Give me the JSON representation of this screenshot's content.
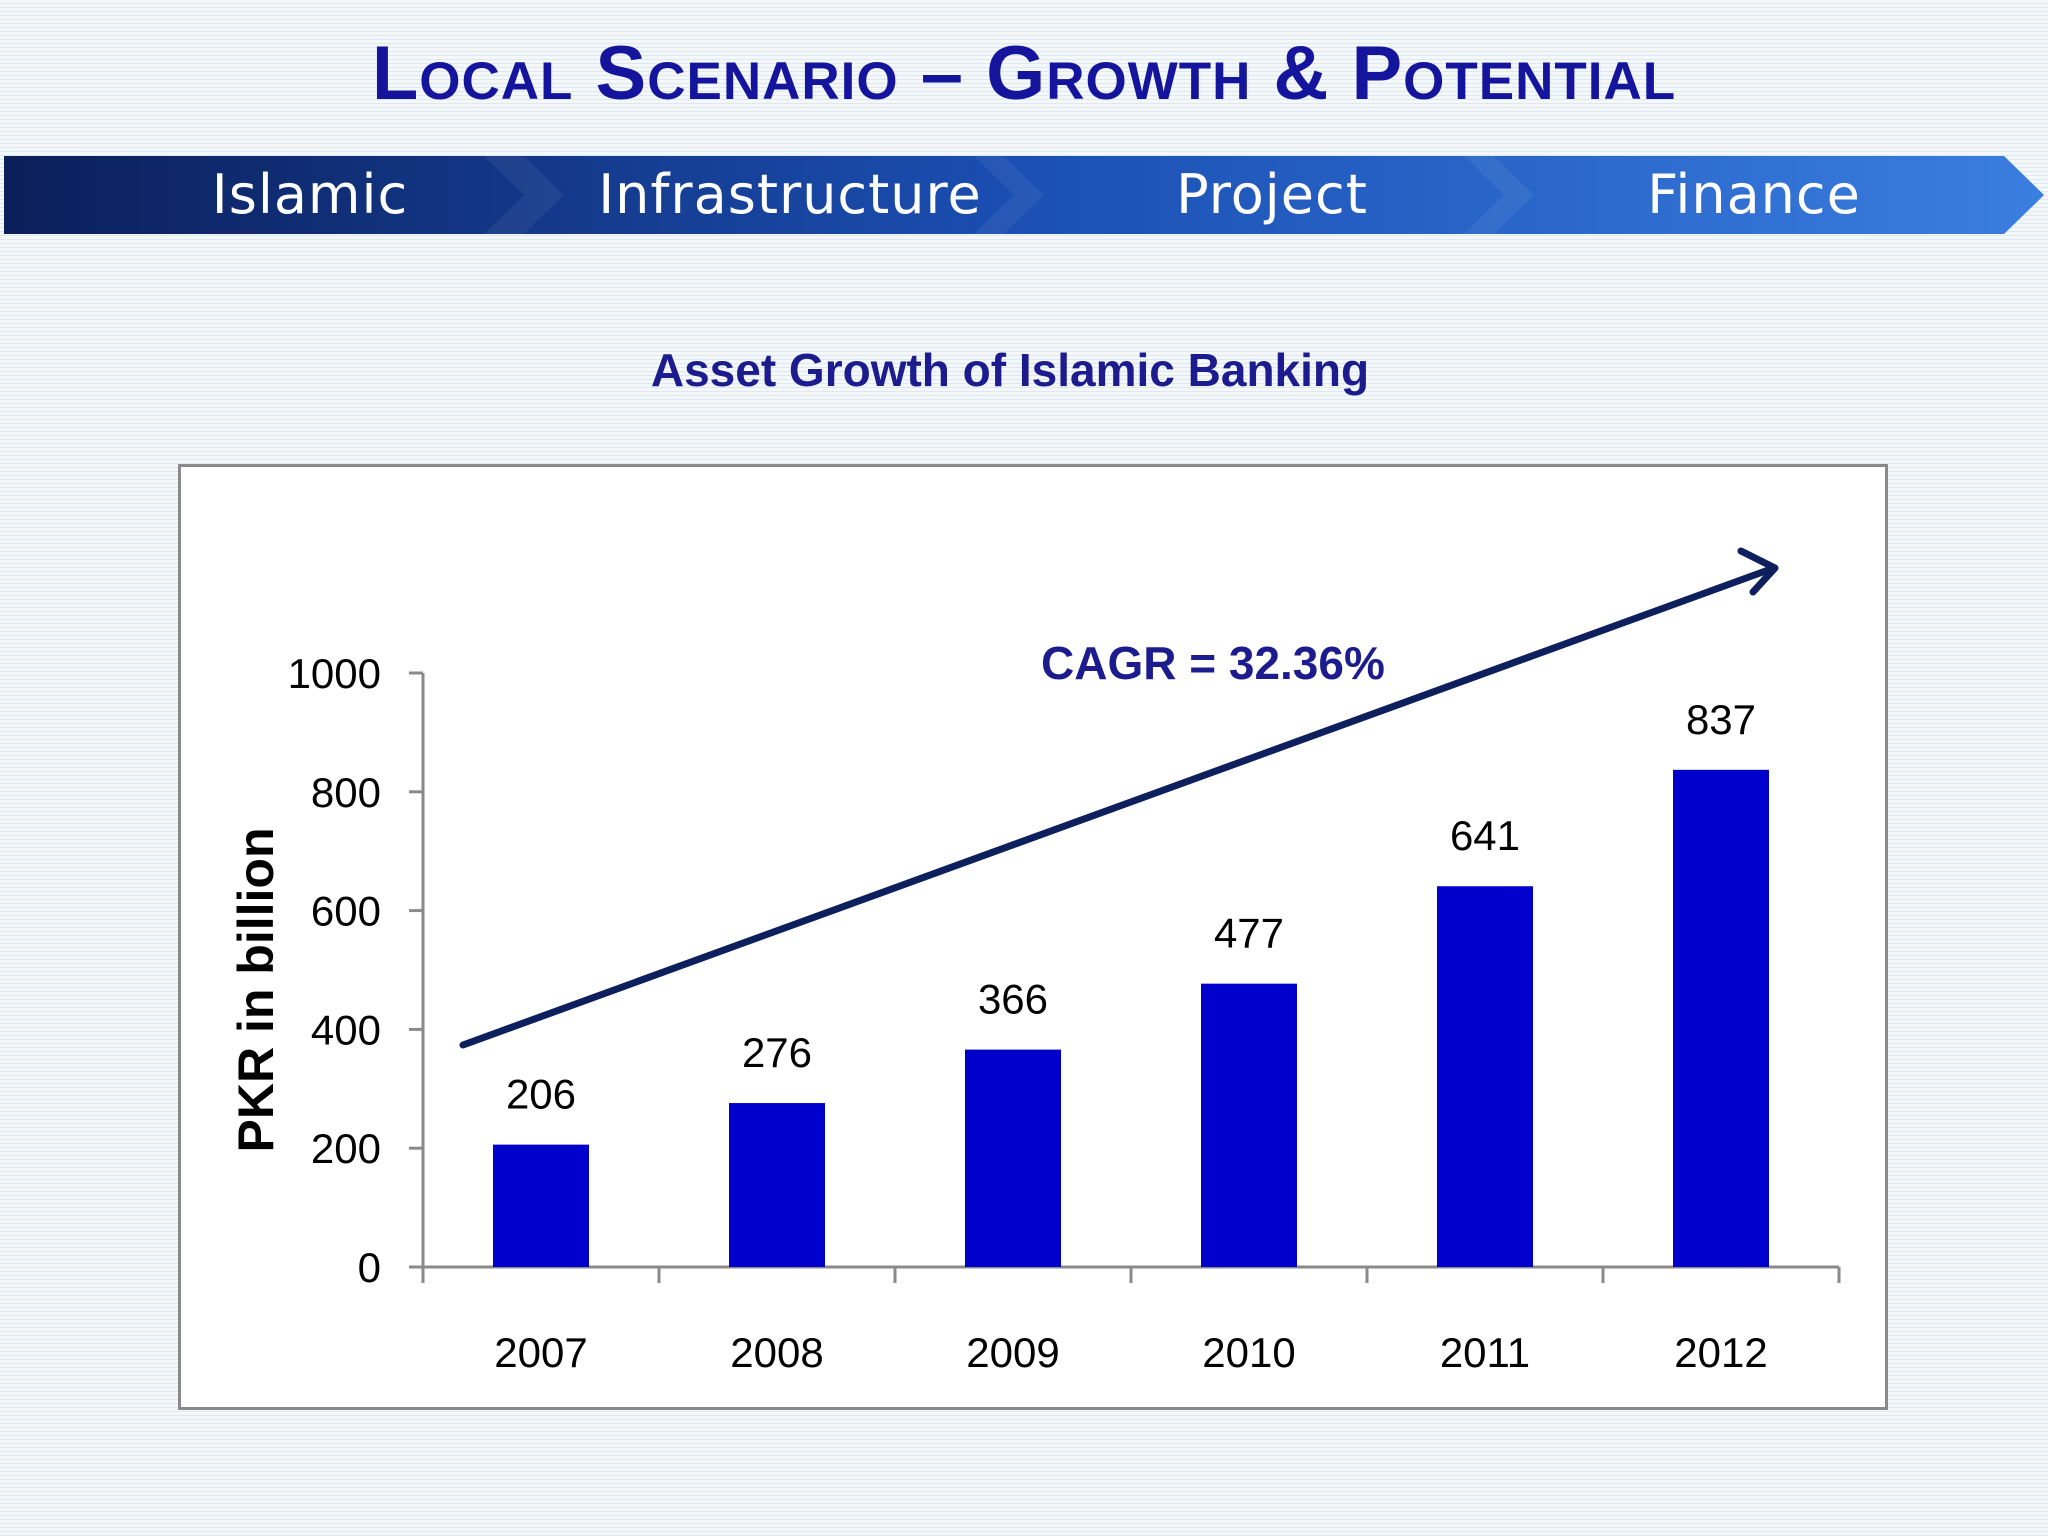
{
  "slide": {
    "title": "Local Scenario – Growth & Potential",
    "banner_words": [
      "Islamic",
      "Infrastructure",
      "Project",
      "Finance"
    ]
  },
  "colors": {
    "title": "#14149c",
    "bar": "#0000cc",
    "trend_arrow": "#0d1f5c",
    "banner_dark": "#0b1f5a",
    "banner_light": "#3a7ee0"
  },
  "chart_data": {
    "type": "bar",
    "title": "Asset Growth of Islamic Banking",
    "xlabel": "",
    "ylabel": "PKR in billion",
    "categories": [
      "2007",
      "2008",
      "2009",
      "2010",
      "2011",
      "2012"
    ],
    "values": [
      206,
      276,
      366,
      477,
      641,
      837
    ],
    "data_labels": [
      "206",
      "276",
      "366",
      "477",
      "641",
      "837"
    ],
    "ylim": [
      0,
      1000
    ],
    "yticks": [
      0,
      200,
      400,
      600,
      800,
      1000
    ],
    "ytick_labels": [
      "0",
      "200",
      "400",
      "600",
      "800",
      "1000"
    ],
    "grid": false,
    "legend": "none",
    "annotation": "CAGR = 32.36%",
    "trend_arrow": "upward"
  }
}
